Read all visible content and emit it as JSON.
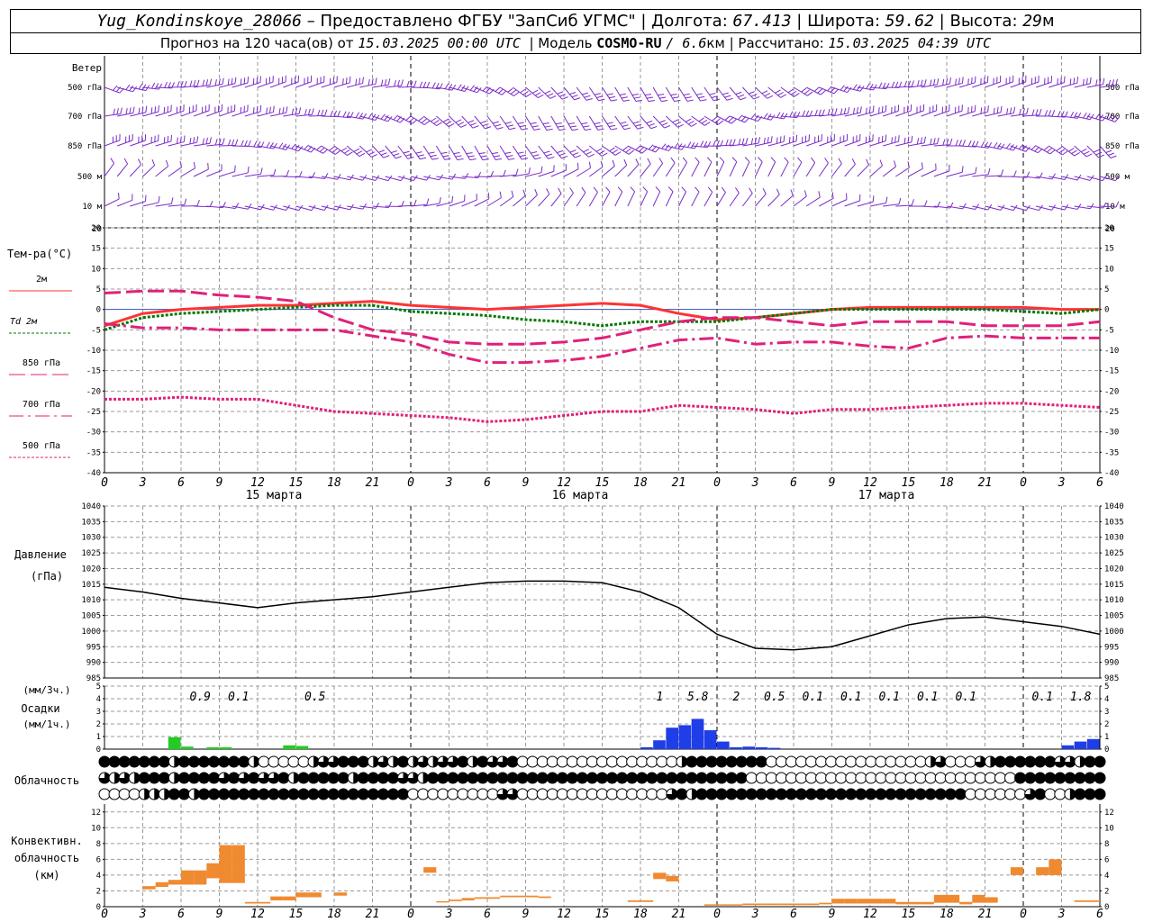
{
  "header": {
    "station": "Yug_Kondinskoye_28066",
    "provider_text": "– Предоставлено ФГБУ \"ЗапСиб УГМС\"",
    "lon_label": "Долгота:",
    "lon_value": "67.413",
    "lat_label": "Широта:",
    "lat_value": "59.62",
    "alt_label": "Высота:",
    "alt_value": "29",
    "alt_unit": "м",
    "forecast_text": "Прогноз на 120 часа(ов) от",
    "start_time": "15.03.2025 00:00 UTC",
    "model_label": "Модель",
    "model_name": "COSMO-RU",
    "model_res": "/ 6.6",
    "model_res_unit": "км",
    "calc_label": "Рассчитано:",
    "calc_time": "15.03.2025 04:39 UTC"
  },
  "chart_data": [
    {
      "panel": "wind",
      "type": "wind_barbs",
      "title": "Ветер",
      "levels": [
        "500 гПа",
        "700 гПа",
        "850 гПа",
        "500 м",
        "10 м"
      ],
      "bottom_tick": "20"
    },
    {
      "panel": "temperature",
      "type": "line",
      "title": "Тем-ра(°C)",
      "ylim": [
        -40,
        20
      ],
      "yticks": [
        20,
        15,
        10,
        5,
        0,
        -5,
        -10,
        -15,
        -20,
        -25,
        -30,
        -35,
        -40
      ],
      "x_hours": [
        0,
        3,
        6,
        9,
        12,
        15,
        18,
        21,
        24,
        27,
        30,
        33,
        36,
        39,
        42,
        45,
        48,
        51,
        54,
        57,
        60,
        63,
        66,
        69,
        72,
        75,
        78
      ],
      "series": [
        {
          "name": "2м",
          "color": "#ff3333",
          "style": "solid",
          "values": [
            -4,
            -1,
            0,
            0.5,
            1,
            1,
            1.5,
            2,
            1,
            0.5,
            0,
            0.5,
            1,
            1.5,
            1,
            -1,
            -2.5,
            -2,
            -1,
            0,
            0.5,
            0.5,
            0.5,
            0.5,
            0.5,
            0,
            0
          ]
        },
        {
          "name": "Td 2м",
          "color": "#007700",
          "style": "dotted",
          "values": [
            -5,
            -2,
            -1,
            -0.5,
            0,
            0.5,
            1,
            1,
            -0.5,
            -1,
            -1.5,
            -2.5,
            -3,
            -4,
            -3,
            -3,
            -3,
            -2,
            -1,
            0,
            0,
            0,
            0,
            0,
            -0.5,
            -1,
            0
          ]
        },
        {
          "name": "850 гПа",
          "color": "#e0207a",
          "style": "dash",
          "values": [
            4,
            4.5,
            4.5,
            3.5,
            3,
            2,
            -2,
            -5,
            -6,
            -8,
            -8.5,
            -8.5,
            -8,
            -7,
            -5,
            -3,
            -2,
            -2,
            -3,
            -4,
            -3,
            -3,
            -3,
            -4,
            -4,
            -4,
            -3
          ]
        },
        {
          "name": "700 гПа",
          "color": "#e0207a",
          "style": "dashdot",
          "values": [
            -3.5,
            -4.5,
            -4.5,
            -5,
            -5,
            -5,
            -5,
            -6.5,
            -8,
            -11,
            -13,
            -13,
            -12.5,
            -11.5,
            -9.5,
            -7.5,
            -7,
            -8.5,
            -8,
            -8,
            -9,
            -9.5,
            -7,
            -6.5,
            -7,
            -7,
            -7
          ]
        },
        {
          "name": "500 гПа",
          "color": "#e0207a",
          "style": "dotted",
          "values": [
            -22,
            -22,
            -21.5,
            -22,
            -22,
            -23.5,
            -25,
            -25.5,
            -26,
            -26.5,
            -27.5,
            -27,
            -26,
            -25,
            -25,
            -23.5,
            -24,
            -24.5,
            -25.5,
            -24.5,
            -24.5,
            -24,
            -23.5,
            -23,
            -23,
            -23.5,
            -24
          ]
        }
      ],
      "x_tick_labels": [
        "0",
        "3",
        "6",
        "9",
        "12",
        "15",
        "18",
        "21",
        "0",
        "3",
        "6",
        "9",
        "12",
        "15",
        "18",
        "21",
        "0",
        "3",
        "6",
        "9",
        "12",
        "15",
        "18",
        "21",
        "0",
        "3",
        "6"
      ],
      "date_labels": [
        "15 марта",
        "16 марта",
        "17 марта"
      ]
    },
    {
      "panel": "pressure",
      "type": "line",
      "title": "Давление",
      "unit": "(гПа)",
      "ylim": [
        985,
        1040
      ],
      "yticks": [
        1040,
        1035,
        1030,
        1025,
        1020,
        1015,
        1010,
        1005,
        1000,
        995,
        990,
        985
      ],
      "x_hours": [
        0,
        3,
        6,
        9,
        12,
        15,
        18,
        21,
        24,
        27,
        30,
        33,
        36,
        39,
        42,
        45,
        48,
        51,
        54,
        57,
        60,
        63,
        66,
        69,
        72,
        75,
        78
      ],
      "values": [
        1014,
        1012.5,
        1010.5,
        1009,
        1007.5,
        1009,
        1010,
        1011,
        1012.5,
        1014,
        1015.5,
        1016,
        1016,
        1015.5,
        1012.5,
        1007.5,
        999,
        994.5,
        994,
        995,
        998.5,
        1002,
        1004,
        1004.5,
        1003,
        1001.5,
        999
      ]
    },
    {
      "panel": "precipitation",
      "type": "bar",
      "title": "Осадки",
      "unit_3h": "(мм/3ч.)",
      "unit_1h": "(мм/1ч.)",
      "ylim": [
        0,
        5
      ],
      "yticks": [
        5,
        4,
        3,
        2,
        1,
        0
      ],
      "hourly_bars": [
        {
          "h": 6,
          "v": 0.95,
          "kind": "rain"
        },
        {
          "h": 7,
          "v": 0.2,
          "kind": "rain"
        },
        {
          "h": 9,
          "v": 0.15,
          "kind": "rain"
        },
        {
          "h": 10,
          "v": 0.15,
          "kind": "rain"
        },
        {
          "h": 15,
          "v": 0.3,
          "kind": "rain"
        },
        {
          "h": 16,
          "v": 0.25,
          "kind": "rain"
        },
        {
          "h": 43,
          "v": 0.15,
          "kind": "snow"
        },
        {
          "h": 44,
          "v": 0.7,
          "kind": "snow"
        },
        {
          "h": 45,
          "v": 1.7,
          "kind": "snow"
        },
        {
          "h": 46,
          "v": 1.9,
          "kind": "snow"
        },
        {
          "h": 47,
          "v": 2.4,
          "kind": "snow"
        },
        {
          "h": 48,
          "v": 1.5,
          "kind": "snow"
        },
        {
          "h": 49,
          "v": 0.6,
          "kind": "snow"
        },
        {
          "h": 50,
          "v": 0.15,
          "kind": "snow"
        },
        {
          "h": 51,
          "v": 0.2,
          "kind": "snow"
        },
        {
          "h": 52,
          "v": 0.15,
          "kind": "snow"
        },
        {
          "h": 53,
          "v": 0.1,
          "kind": "snow"
        },
        {
          "h": 76,
          "v": 0.3,
          "kind": "snow"
        },
        {
          "h": 77,
          "v": 0.6,
          "kind": "snow"
        },
        {
          "h": 78,
          "v": 0.8,
          "kind": "snow"
        }
      ],
      "sum_labels": [
        {
          "h": 7.5,
          "label": "0.9"
        },
        {
          "h": 10.5,
          "label": "0.1"
        },
        {
          "h": 16.5,
          "label": "0.5"
        },
        {
          "h": 43.5,
          "label": "1"
        },
        {
          "h": 46.5,
          "label": "5.8"
        },
        {
          "h": 49.5,
          "label": "2"
        },
        {
          "h": 52.5,
          "label": "0.5"
        },
        {
          "h": 55.5,
          "label": "0.1"
        },
        {
          "h": 58.5,
          "label": "0.1"
        },
        {
          "h": 61.5,
          "label": "0.1"
        },
        {
          "h": 64.5,
          "label": "0.1"
        },
        {
          "h": 67.5,
          "label": "0.1"
        },
        {
          "h": 73.5,
          "label": "0.1"
        },
        {
          "h": 76.5,
          "label": "1.8"
        }
      ]
    },
    {
      "panel": "cloudiness",
      "type": "cloud_cover_symbols",
      "title": "Облачность",
      "rows": [
        [
          8,
          8,
          8,
          8,
          8,
          8,
          8,
          4,
          8,
          8,
          8,
          8,
          8,
          8,
          8,
          4,
          0,
          0,
          0,
          0,
          0,
          4,
          6,
          6,
          8,
          8,
          8,
          4,
          6,
          4,
          8,
          4,
          6,
          4,
          6,
          6,
          8,
          4,
          8,
          6,
          6,
          8,
          0,
          0,
          0,
          0,
          0,
          0,
          0,
          0,
          0,
          0,
          0,
          0,
          0,
          0,
          0,
          0,
          4,
          8,
          8,
          8,
          8,
          8,
          8,
          8,
          8,
          0,
          0,
          0,
          0,
          0,
          0,
          0,
          0,
          0,
          0,
          0,
          0,
          0,
          0,
          0,
          0,
          4,
          6,
          0,
          0,
          0,
          6,
          4,
          8,
          8,
          8,
          8,
          8,
          8,
          6,
          6,
          4,
          8,
          8
        ],
        [
          6,
          4,
          6,
          4,
          8,
          8,
          8,
          4,
          8,
          8,
          8,
          8,
          6,
          8,
          6,
          8,
          6,
          6,
          8,
          4,
          8,
          8,
          8,
          8,
          8,
          4,
          8,
          8,
          8,
          8,
          6,
          6,
          4,
          8,
          8,
          8,
          8,
          8,
          8,
          8,
          8,
          8,
          8,
          8,
          8,
          8,
          8,
          8,
          8,
          8,
          8,
          8,
          8,
          8,
          8,
          8,
          8,
          8,
          8,
          8,
          8,
          8,
          8,
          8,
          8,
          0,
          0,
          0,
          0,
          0,
          0,
          0,
          0,
          0,
          0,
          0,
          0,
          0,
          0,
          0,
          0,
          0,
          0,
          0,
          0,
          0,
          0,
          0,
          0,
          0,
          0,
          0,
          8,
          8,
          8,
          8,
          8,
          8,
          8,
          8,
          8
        ],
        [
          0,
          0,
          0,
          0,
          4,
          4,
          4,
          8,
          8,
          4,
          8,
          8,
          8,
          8,
          8,
          8,
          8,
          8,
          8,
          8,
          8,
          8,
          8,
          8,
          8,
          8,
          8,
          8,
          8,
          8,
          8,
          0,
          0,
          0,
          0,
          0,
          0,
          0,
          0,
          0,
          6,
          6,
          0,
          0,
          0,
          0,
          0,
          0,
          0,
          0,
          0,
          0,
          0,
          0,
          0,
          0,
          0,
          6,
          8,
          4,
          8,
          8,
          8,
          8,
          8,
          8,
          8,
          8,
          8,
          8,
          8,
          8,
          8,
          8,
          8,
          8,
          8,
          8,
          8,
          8,
          8,
          8,
          8,
          8,
          8,
          8,
          8,
          0,
          0,
          0,
          0,
          0,
          0,
          6,
          8,
          0,
          0,
          4,
          8,
          8,
          8
        ]
      ]
    },
    {
      "panel": "convective",
      "type": "range_bar",
      "title_lines": [
        "Конвективн.",
        "облачность",
        "(км)"
      ],
      "ylim": [
        0,
        13
      ],
      "yticks": [
        12,
        10,
        8,
        6,
        4,
        2,
        0
      ],
      "hourly_ranges": [
        {
          "h": 4,
          "lo": 2.2,
          "hi": 2.6
        },
        {
          "h": 5,
          "lo": 2.5,
          "hi": 3.1
        },
        {
          "h": 6,
          "lo": 2.8,
          "hi": 3.4
        },
        {
          "h": 7,
          "lo": 2.8,
          "hi": 4.6
        },
        {
          "h": 8,
          "lo": 2.8,
          "hi": 4.6
        },
        {
          "h": 9,
          "lo": 3.6,
          "hi": 5.5
        },
        {
          "h": 10,
          "lo": 3.0,
          "hi": 7.8
        },
        {
          "h": 11,
          "lo": 3.0,
          "hi": 7.8
        },
        {
          "h": 12,
          "lo": 0.4,
          "hi": 0.6
        },
        {
          "h": 13,
          "lo": 0.4,
          "hi": 0.6
        },
        {
          "h": 14,
          "lo": 0.8,
          "hi": 1.3
        },
        {
          "h": 15,
          "lo": 0.8,
          "hi": 1.3
        },
        {
          "h": 16,
          "lo": 1.2,
          "hi": 1.8
        },
        {
          "h": 17,
          "lo": 1.2,
          "hi": 1.8
        },
        {
          "h": 19,
          "lo": 1.4,
          "hi": 1.8
        },
        {
          "h": 26,
          "lo": 4.3,
          "hi": 5.0
        },
        {
          "h": 27,
          "lo": 0.6,
          "hi": 0.7
        },
        {
          "h": 28,
          "lo": 0.7,
          "hi": 0.9
        },
        {
          "h": 29,
          "lo": 0.8,
          "hi": 1.1
        },
        {
          "h": 30,
          "lo": 1.0,
          "hi": 1.2
        },
        {
          "h": 31,
          "lo": 1.0,
          "hi": 1.2
        },
        {
          "h": 32,
          "lo": 1.2,
          "hi": 1.4
        },
        {
          "h": 33,
          "lo": 1.2,
          "hi": 1.4
        },
        {
          "h": 34,
          "lo": 1.2,
          "hi": 1.4
        },
        {
          "h": 35,
          "lo": 1.1,
          "hi": 1.3
        },
        {
          "h": 42,
          "lo": 0.6,
          "hi": 0.8
        },
        {
          "h": 43,
          "lo": 0.6,
          "hi": 0.8
        },
        {
          "h": 44,
          "lo": 3.5,
          "hi": 4.3
        },
        {
          "h": 45,
          "lo": 3.2,
          "hi": 3.9
        },
        {
          "h": 48,
          "lo": 0.2,
          "hi": 0.3
        },
        {
          "h": 49,
          "lo": 0.2,
          "hi": 0.3
        },
        {
          "h": 50,
          "lo": 0.2,
          "hi": 0.3
        },
        {
          "h": 51,
          "lo": 0.2,
          "hi": 0.4
        },
        {
          "h": 52,
          "lo": 0.2,
          "hi": 0.4
        },
        {
          "h": 53,
          "lo": 0.2,
          "hi": 0.4
        },
        {
          "h": 54,
          "lo": 0.2,
          "hi": 0.4
        },
        {
          "h": 55,
          "lo": 0.2,
          "hi": 0.4
        },
        {
          "h": 56,
          "lo": 0.2,
          "hi": 0.4
        },
        {
          "h": 57,
          "lo": 0.3,
          "hi": 0.5
        },
        {
          "h": 58,
          "lo": 0.4,
          "hi": 1.0
        },
        {
          "h": 59,
          "lo": 0.4,
          "hi": 1.0
        },
        {
          "h": 60,
          "lo": 0.4,
          "hi": 1.0
        },
        {
          "h": 61,
          "lo": 0.4,
          "hi": 1.0
        },
        {
          "h": 62,
          "lo": 0.4,
          "hi": 1.0
        },
        {
          "h": 63,
          "lo": 0.3,
          "hi": 0.6
        },
        {
          "h": 64,
          "lo": 0.3,
          "hi": 0.6
        },
        {
          "h": 65,
          "lo": 0.3,
          "hi": 0.6
        },
        {
          "h": 66,
          "lo": 0.5,
          "hi": 1.5
        },
        {
          "h": 67,
          "lo": 0.5,
          "hi": 1.5
        },
        {
          "h": 68,
          "lo": 0.3,
          "hi": 0.6
        },
        {
          "h": 69,
          "lo": 0.5,
          "hi": 1.5
        },
        {
          "h": 70,
          "lo": 0.5,
          "hi": 1.2
        },
        {
          "h": 72,
          "lo": 4.0,
          "hi": 5.0
        },
        {
          "h": 74,
          "lo": 4.0,
          "hi": 5.0
        },
        {
          "h": 75,
          "lo": 4.0,
          "hi": 6.0
        },
        {
          "h": 77,
          "lo": 0.6,
          "hi": 0.8
        },
        {
          "h": 78,
          "lo": 0.6,
          "hi": 0.8
        }
      ]
    }
  ],
  "colors": {
    "wind": "#7a2cc8",
    "t2m": "#ff3333",
    "td": "#007700",
    "upper": "#e0207a",
    "rain": "#22cc22",
    "snow": "#1f3ee8",
    "convective": "#f08a30",
    "grid": "#9a9a9a"
  }
}
